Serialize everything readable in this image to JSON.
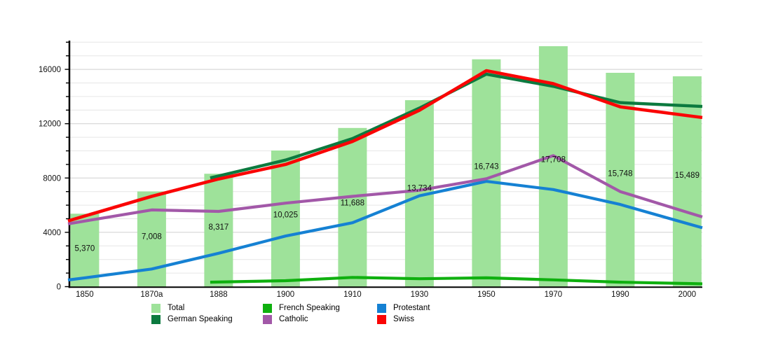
{
  "chart_data": {
    "type": "bar+line",
    "title": "",
    "xlabel": "",
    "ylabel": "",
    "legend_position": "bottom",
    "grid": "horizontal, minor every 1000, major every 4000",
    "categories": [
      "1850",
      "1870a",
      "1888",
      "1900",
      "1910",
      "1930",
      "1950",
      "1970",
      "1990",
      "2000"
    ],
    "y_axis": {
      "range": [
        0,
        18000
      ],
      "tick_values": [
        0,
        4000,
        8000,
        12000,
        16000
      ],
      "tick_labels": [
        "0",
        "4000",
        "8000",
        "12000",
        "16000"
      ],
      "minor_step": 1000
    },
    "bars": {
      "name": "Total",
      "color": "#9ee29a",
      "values": [
        5370,
        7008,
        8317,
        10025,
        11688,
        13734,
        16743,
        17708,
        15748,
        15489
      ],
      "value_labels": [
        "5,370",
        "7,008",
        "8,317",
        "10,025",
        "11,688",
        "13,734",
        "16,743",
        "17,708",
        "15,748",
        "15,489"
      ]
    },
    "series": [
      {
        "name": "German Speaking",
        "color": "#0c7a3f",
        "stroke_width": 4.4,
        "values": [
          null,
          null,
          8150,
          9320,
          10900,
          13150,
          15650,
          14750,
          13550,
          13320
        ]
      },
      {
        "name": "French Speaking",
        "color": "#0fb00f",
        "stroke_width": 4.2,
        "values": [
          null,
          null,
          340,
          440,
          680,
          580,
          650,
          500,
          330,
          230
        ]
      },
      {
        "name": "Protestant",
        "color": "#1581d3",
        "stroke_width": 4.2,
        "values": [
          650,
          1300,
          2460,
          3725,
          4707,
          6689,
          7750,
          7150,
          6050,
          4650
        ]
      },
      {
        "name": "Catholic",
        "color": "#a258a8",
        "stroke_width": 4.2,
        "values": [
          4830,
          5650,
          5540,
          6150,
          6650,
          7100,
          7950,
          9650,
          7000,
          5480
        ]
      },
      {
        "name": "Swiss",
        "color": "#fa0505",
        "stroke_width": 4.6,
        "values": [
          5200,
          6650,
          7930,
          9000,
          10690,
          12990,
          15900,
          14950,
          13240,
          12600
        ]
      }
    ],
    "legend": [
      {
        "label": "Total",
        "color": "#9ee29a"
      },
      {
        "label": "French Speaking",
        "color": "#0fb00f"
      },
      {
        "label": "Protestant",
        "color": "#1581d3"
      },
      {
        "label": "German Speaking",
        "color": "#0c7a3f"
      },
      {
        "label": "Catholic",
        "color": "#a258a8"
      },
      {
        "label": "Swiss",
        "color": "#fa0505"
      }
    ]
  }
}
